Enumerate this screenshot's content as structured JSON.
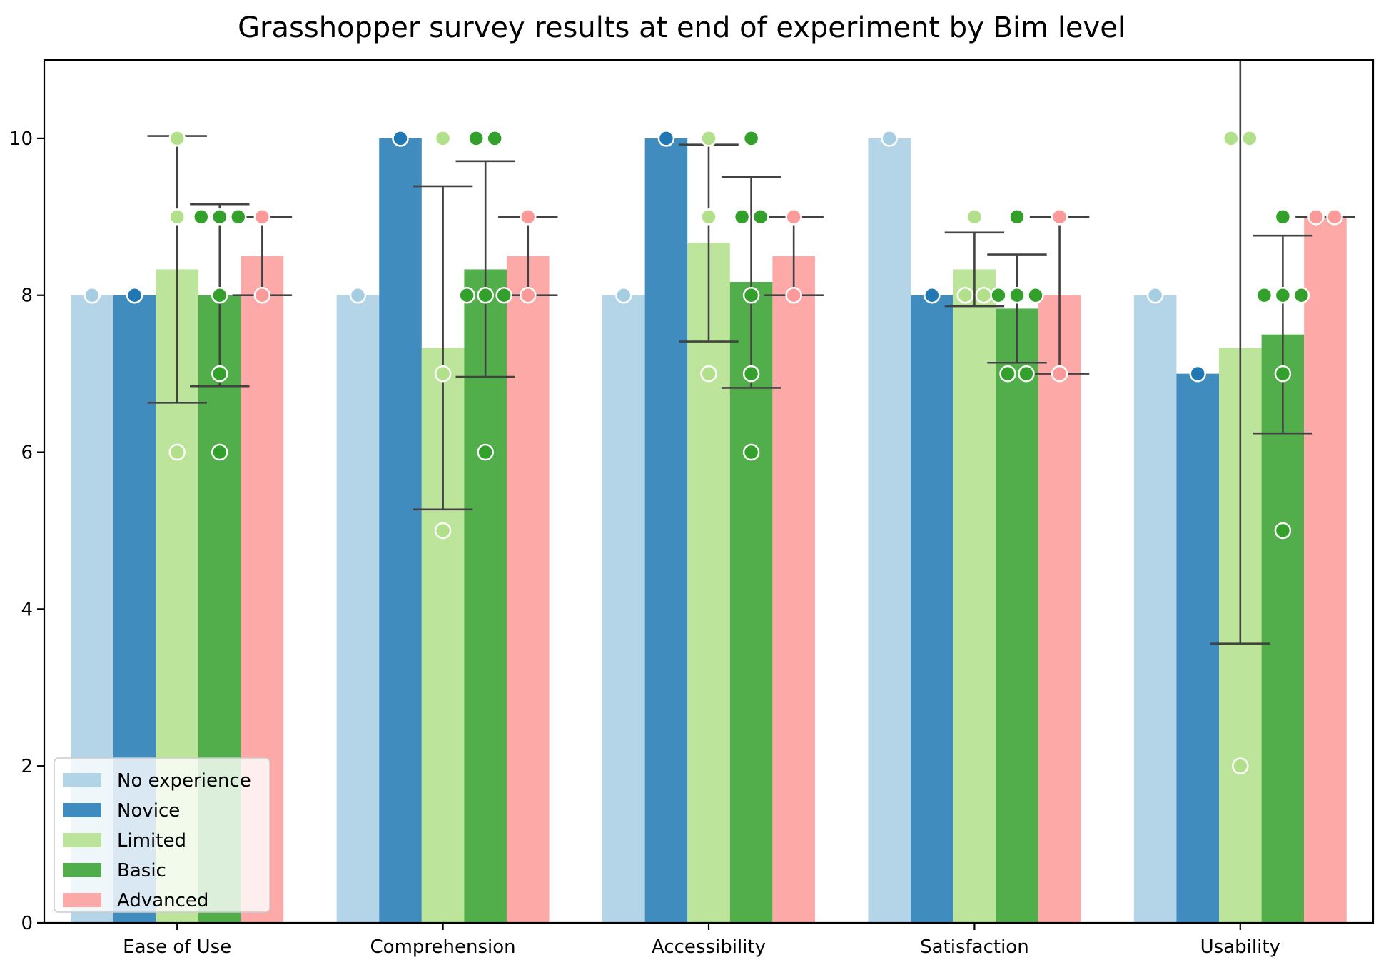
{
  "chart_data": {
    "type": "bar",
    "title": "Grasshopper survey results at end of experiment by Bim level",
    "xlabel": "",
    "ylabel": "",
    "ylim": [
      0,
      11
    ],
    "yticks": [
      0,
      2,
      4,
      6,
      8,
      10
    ],
    "categories": [
      "Ease of Use",
      "Comprehension",
      "Accessibility",
      "Satisfaction",
      "Usability"
    ],
    "legend_position": "lower-left",
    "grid": false,
    "series": [
      {
        "name": "No experience",
        "color": "#a6cee3",
        "values": [
          8,
          8,
          8,
          10,
          8
        ],
        "error_low": [
          null,
          null,
          null,
          null,
          null
        ],
        "error_high": [
          null,
          null,
          null,
          null,
          null
        ],
        "points": [
          [
            8
          ],
          [
            8
          ],
          [
            8
          ],
          [
            10
          ],
          [
            8
          ]
        ]
      },
      {
        "name": "Novice",
        "color": "#1f78b4",
        "values": [
          8,
          10,
          10,
          8,
          7
        ],
        "error_low": [
          null,
          null,
          null,
          null,
          null
        ],
        "error_high": [
          null,
          null,
          null,
          null,
          null
        ],
        "points": [
          [
            8
          ],
          [
            10
          ],
          [
            10
          ],
          [
            8
          ],
          [
            7
          ]
        ]
      },
      {
        "name": "Limited",
        "color": "#b2df8a",
        "values": [
          8.33,
          7.33,
          8.67,
          8.33,
          7.33
        ],
        "error_low": [
          6.63,
          5.27,
          7.41,
          7.86,
          3.56
        ],
        "error_high": [
          10.03,
          9.39,
          9.92,
          8.8,
          11.1
        ],
        "points": [
          [
            10,
            9,
            6
          ],
          [
            10,
            7,
            5
          ],
          [
            10,
            9,
            7
          ],
          [
            9,
            8,
            8
          ],
          [
            10,
            10,
            2
          ]
        ]
      },
      {
        "name": "Basic",
        "color": "#33a02c",
        "values": [
          8.0,
          8.33,
          8.17,
          7.83,
          7.5
        ],
        "error_low": [
          6.84,
          6.96,
          6.82,
          7.14,
          6.24
        ],
        "error_high": [
          9.16,
          9.71,
          9.51,
          8.52,
          8.76
        ],
        "points": [
          [
            9,
            9,
            9,
            8,
            7,
            6
          ],
          [
            10,
            10,
            8,
            8,
            8,
            6
          ],
          [
            10,
            9,
            9,
            8,
            7,
            6
          ],
          [
            9,
            8,
            8,
            8,
            7,
            7
          ],
          [
            9,
            8,
            8,
            8,
            7,
            5
          ]
        ]
      },
      {
        "name": "Advanced",
        "color": "#fb9a99",
        "values": [
          8.5,
          8.5,
          8.5,
          8.0,
          9.0
        ],
        "error_low": [
          8.0,
          8.0,
          8.0,
          7.0,
          9.0
        ],
        "error_high": [
          9.0,
          9.0,
          9.0,
          9.0,
          9.0
        ],
        "points": [
          [
            9,
            8
          ],
          [
            9,
            8
          ],
          [
            9,
            8
          ],
          [
            9,
            7
          ],
          [
            9,
            9
          ]
        ]
      }
    ]
  }
}
